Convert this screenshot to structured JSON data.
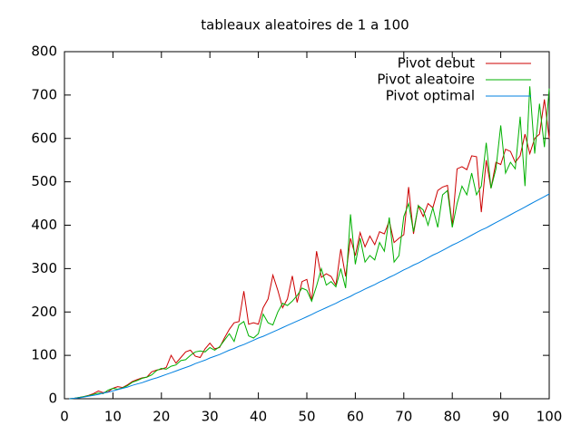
{
  "chart_data": {
    "type": "line",
    "title": "tableaux aleatoires de 1 a 100",
    "x": [
      1,
      2,
      3,
      4,
      5,
      6,
      7,
      8,
      9,
      10,
      11,
      12,
      13,
      14,
      15,
      16,
      17,
      18,
      19,
      20,
      21,
      22,
      23,
      24,
      25,
      26,
      27,
      28,
      29,
      30,
      31,
      32,
      33,
      34,
      35,
      36,
      37,
      38,
      39,
      40,
      41,
      42,
      43,
      44,
      45,
      46,
      47,
      48,
      49,
      50,
      51,
      52,
      53,
      54,
      55,
      56,
      57,
      58,
      59,
      60,
      61,
      62,
      63,
      64,
      65,
      66,
      67,
      68,
      69,
      70,
      71,
      72,
      73,
      74,
      75,
      76,
      77,
      78,
      79,
      80,
      81,
      82,
      83,
      84,
      85,
      86,
      87,
      88,
      89,
      90,
      91,
      92,
      93,
      94,
      95,
      96,
      97,
      98,
      99,
      100
    ],
    "series": [
      {
        "name": "Pivot debut",
        "color": "#cc0000",
        "values": [
          0,
          1,
          3,
          5,
          8,
          12,
          18,
          14,
          16,
          24,
          28,
          26,
          32,
          40,
          44,
          48,
          50,
          62,
          66,
          68,
          72,
          100,
          82,
          95,
          108,
          112,
          98,
          95,
          115,
          128,
          115,
          118,
          140,
          160,
          175,
          178,
          248,
          172,
          175,
          172,
          210,
          230,
          285,
          250,
          210,
          230,
          283,
          222,
          270,
          275,
          225,
          340,
          280,
          288,
          282,
          262,
          345,
          282,
          370,
          330,
          383,
          350,
          375,
          355,
          385,
          380,
          410,
          360,
          370,
          378,
          488,
          380,
          445,
          420,
          450,
          440,
          480,
          488,
          492,
          400,
          530,
          535,
          528,
          560,
          558,
          430,
          550,
          485,
          545,
          540,
          575,
          570,
          545,
          560,
          610,
          565,
          600,
          610,
          690,
          600
        ]
      },
      {
        "name": "Pivot aleatoire",
        "color": "#00b000",
        "values": [
          0,
          1,
          3,
          5,
          7,
          10,
          13,
          12,
          20,
          24,
          22,
          25,
          30,
          38,
          42,
          47,
          50,
          55,
          65,
          70,
          68,
          75,
          78,
          88,
          90,
          100,
          108,
          110,
          108,
          118,
          112,
          120,
          135,
          150,
          132,
          170,
          178,
          145,
          140,
          150,
          195,
          175,
          170,
          200,
          220,
          215,
          225,
          238,
          255,
          250,
          225,
          260,
          300,
          262,
          270,
          258,
          300,
          255,
          425,
          310,
          370,
          315,
          330,
          320,
          360,
          340,
          418,
          315,
          330,
          420,
          450,
          385,
          445,
          435,
          400,
          440,
          395,
          470,
          480,
          395,
          450,
          490,
          470,
          520,
          470,
          490,
          590,
          485,
          530,
          630,
          520,
          545,
          530,
          650,
          490,
          720,
          565,
          680,
          580,
          715
        ]
      },
      {
        "name": "Pivot optimal",
        "color": "#0080e0",
        "values": [
          0,
          1,
          2,
          4,
          6,
          8,
          10,
          13,
          15,
          18,
          21,
          24,
          27,
          31,
          34,
          37,
          41,
          45,
          48,
          52,
          56,
          60,
          64,
          68,
          72,
          76,
          81,
          85,
          89,
          94,
          98,
          102,
          107,
          112,
          116,
          121,
          125,
          130,
          135,
          140,
          144,
          149,
          154,
          159,
          164,
          169,
          174,
          179,
          184,
          189,
          194,
          200,
          205,
          210,
          215,
          220,
          226,
          231,
          236,
          242,
          247,
          253,
          258,
          263,
          269,
          274,
          280,
          285,
          291,
          297,
          302,
          308,
          313,
          319,
          325,
          331,
          336,
          342,
          348,
          354,
          359,
          365,
          371,
          377,
          383,
          389,
          394,
          400,
          406,
          412,
          418,
          424,
          430,
          436,
          442,
          448,
          454,
          460,
          466,
          472
        ]
      }
    ],
    "xlim": [
      0,
      100
    ],
    "xticks": [
      0,
      10,
      20,
      30,
      40,
      50,
      60,
      70,
      80,
      90,
      100
    ],
    "ylim": [
      0,
      800
    ],
    "yticks": [
      0,
      100,
      200,
      300,
      400,
      500,
      600,
      700,
      800
    ],
    "grid": false,
    "legend": "top-right"
  }
}
